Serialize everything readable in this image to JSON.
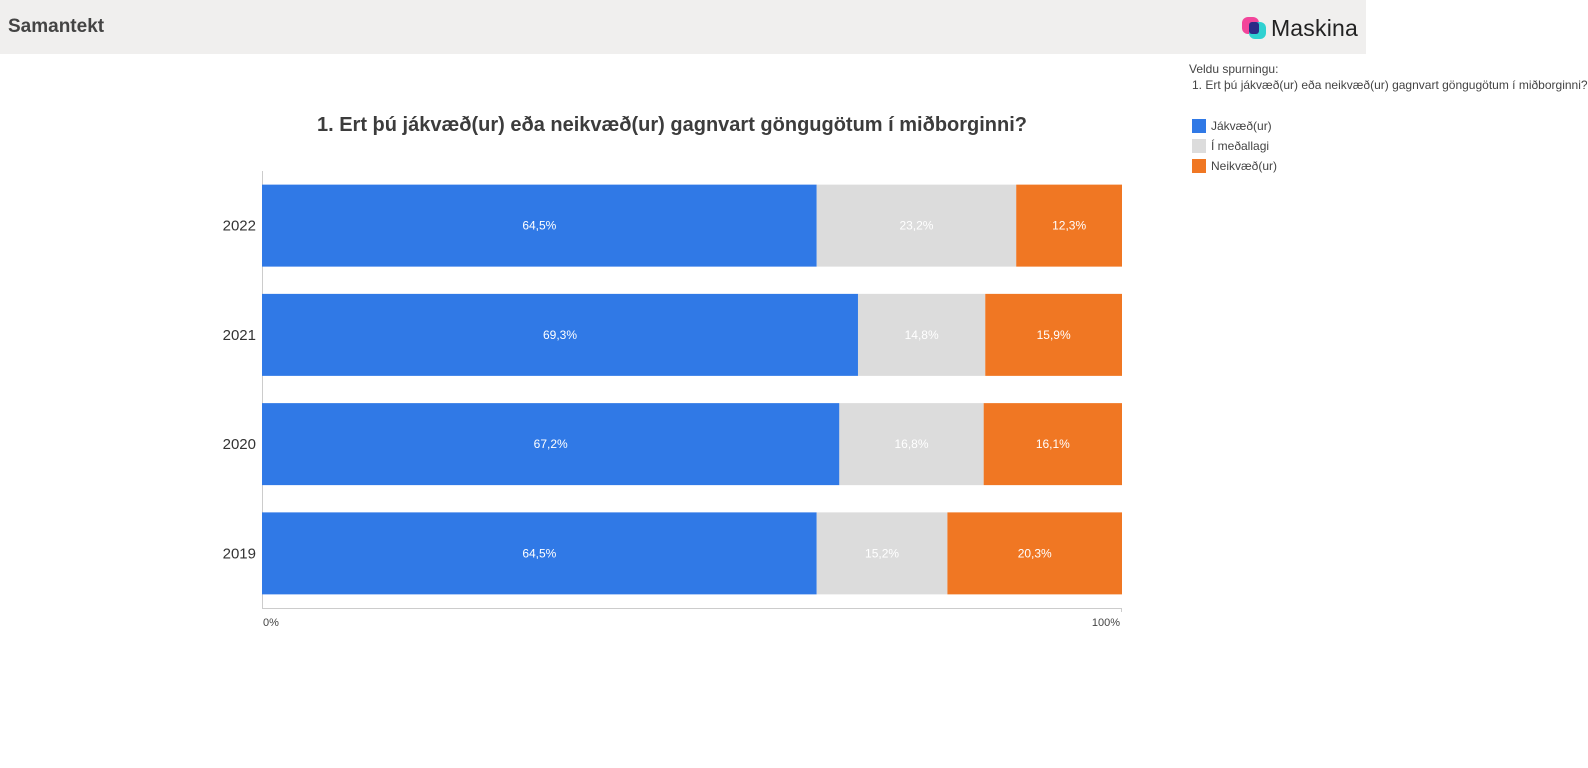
{
  "header": {
    "title": "Samantekt",
    "brand_name": "Maskina"
  },
  "question_selector": {
    "label": "Veldu spurningu:",
    "value": "1. Ert þú jákvæð(ur) eða neikvæð(ur) gagnvart göngugötum í miðborginni?"
  },
  "chart_data": {
    "type": "bar",
    "orientation": "horizontal",
    "stacked": "percent",
    "title": "1. Ert þú jákvæð(ur) eða neikvæð(ur) gagnvart göngugötum í miðborginni?",
    "categories": [
      "2022",
      "2021",
      "2020",
      "2019"
    ],
    "series": [
      {
        "name": "Jákvæð(ur)",
        "values": [
          64.5,
          69.3,
          67.2,
          64.5
        ],
        "labels": [
          "64,5%",
          "69,3%",
          "67,2%",
          "64,5%"
        ],
        "color": "#3079e6"
      },
      {
        "name": "Í meðallagi",
        "values": [
          23.2,
          14.8,
          16.8,
          15.2
        ],
        "labels": [
          "23,2%",
          "14,8%",
          "16,8%",
          "15,2%"
        ],
        "color": "#dcdcdc"
      },
      {
        "name": "Neikvæð(ur)",
        "values": [
          12.3,
          15.9,
          16.1,
          20.3
        ],
        "labels": [
          "12,3%",
          "15,9%",
          "16,1%",
          "20,3%"
        ],
        "color": "#f07723"
      }
    ],
    "x_ticks": [
      "0%",
      "100%"
    ],
    "xlim": [
      0,
      100
    ],
    "legend": "right"
  }
}
